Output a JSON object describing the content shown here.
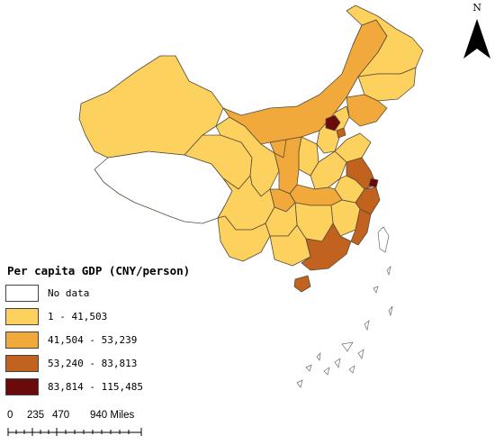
{
  "map": {
    "legend_title": "Per capita GDP (CNY/person)",
    "classes": [
      {
        "label": "No data",
        "color": "#ffffff"
      },
      {
        "label": "1 - 41,503",
        "color": "#fcd15e"
      },
      {
        "label": "41,504 - 53,239",
        "color": "#f2a93b"
      },
      {
        "label": "53,240 - 83,813",
        "color": "#c1631e"
      },
      {
        "label": "83,814 - 115,485",
        "color": "#6b0a0a"
      }
    ],
    "scalebar": {
      "labels": [
        "0",
        "235",
        "470",
        "940 Miles"
      ]
    },
    "north_label": "N",
    "outline_color": "#5a4a3a"
  }
}
